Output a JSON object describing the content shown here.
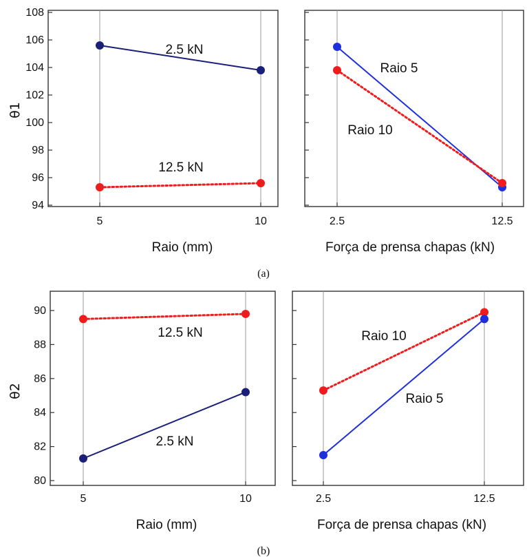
{
  "colors": {
    "blue": "#1f2fdc",
    "navy": "#1a1f7a",
    "red": "#ee1c1c",
    "grid": "#9a9a9a",
    "frame": "#333333"
  },
  "chart_data": [
    {
      "type": "line",
      "caption": "(a)",
      "ylabel": "θ1",
      "xlabel": "Raio (mm)",
      "x": [
        "5",
        "10"
      ],
      "ylim": [
        94,
        108
      ],
      "yticks": [
        94,
        96,
        98,
        100,
        102,
        104,
        106,
        108
      ],
      "series": [
        {
          "name": "2.5 kN",
          "values": [
            105.6,
            103.8
          ],
          "color": "#1a1f7a",
          "style": "solid"
        },
        {
          "name": "12.5 kN",
          "values": [
            95.3,
            95.6
          ],
          "color": "#ee1c1c",
          "style": "dotted"
        }
      ]
    },
    {
      "type": "line",
      "caption": "(a)",
      "xlabel": "Força de prensa chapas (kN)",
      "x": [
        "2.5",
        "12.5"
      ],
      "ylim": [
        94,
        108
      ],
      "series": [
        {
          "name": "Raio 5",
          "values": [
            105.5,
            95.3
          ],
          "color": "#1f2fdc",
          "style": "solid"
        },
        {
          "name": "Raio 10",
          "values": [
            103.8,
            95.6
          ],
          "color": "#ee1c1c",
          "style": "dotted"
        }
      ]
    },
    {
      "type": "line",
      "caption": "(b)",
      "ylabel": "θ2",
      "xlabel": "Raio (mm)",
      "x": [
        "5",
        "10"
      ],
      "ylim": [
        80,
        91
      ],
      "yticks": [
        80,
        82,
        84,
        86,
        88,
        90
      ],
      "series": [
        {
          "name": "12.5 kN",
          "values": [
            89.5,
            89.8
          ],
          "color": "#ee1c1c",
          "style": "dotted"
        },
        {
          "name": "2.5 kN",
          "values": [
            81.3,
            85.2
          ],
          "color": "#1a1f7a",
          "style": "solid"
        }
      ]
    },
    {
      "type": "line",
      "caption": "(b)",
      "xlabel": "Força de prensa chapas (kN)",
      "x": [
        "2.5",
        "12.5"
      ],
      "ylim": [
        80,
        91
      ],
      "series": [
        {
          "name": "Raio 10",
          "values": [
            85.3,
            89.9
          ],
          "color": "#ee1c1c",
          "style": "dotted"
        },
        {
          "name": "Raio 5",
          "values": [
            81.5,
            89.5
          ],
          "color": "#1f2fdc",
          "style": "solid"
        }
      ]
    }
  ]
}
